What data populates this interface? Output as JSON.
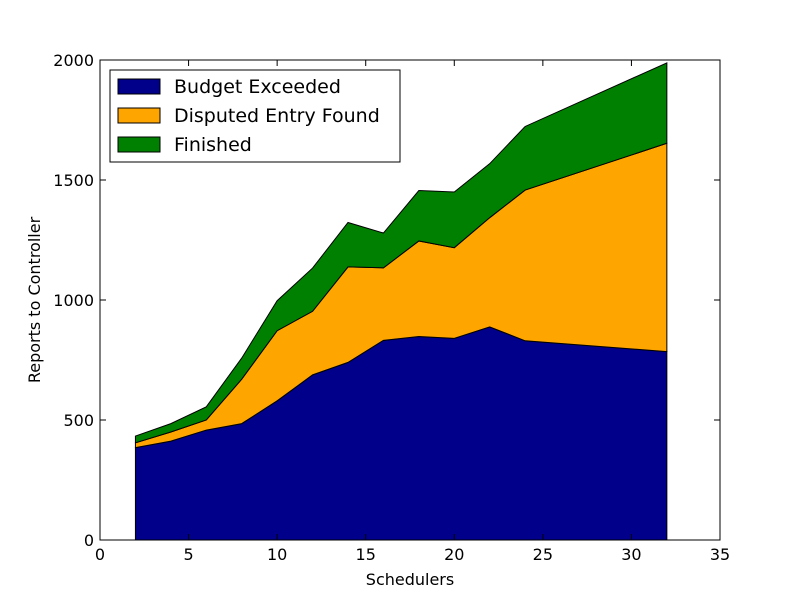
{
  "chart_data": {
    "type": "area",
    "stacked": true,
    "title": "",
    "xlabel": "Schedulers",
    "ylabel": "Reports to Controller",
    "xlim": [
      0,
      35
    ],
    "ylim": [
      0,
      2000
    ],
    "xticks": [
      0,
      5,
      10,
      15,
      20,
      25,
      30,
      35
    ],
    "yticks": [
      0,
      500,
      1000,
      1500,
      2000
    ],
    "grid": false,
    "legend_position": "top-left",
    "x": [
      2,
      4,
      6,
      8,
      10,
      12,
      14,
      16,
      18,
      20,
      22,
      24,
      32
    ],
    "series": [
      {
        "name": "Budget Exceeded",
        "color": "#00008b",
        "values": [
          385,
          412,
          458,
          485,
          580,
          688,
          740,
          832,
          848,
          840,
          888,
          830,
          785
        ]
      },
      {
        "name": "Disputed Entry Found",
        "color": "#ffa500",
        "values": [
          20,
          38,
          42,
          185,
          292,
          265,
          398,
          302,
          398,
          378,
          455,
          628,
          868
        ]
      },
      {
        "name": "Finished",
        "color": "#008000",
        "values": [
          28,
          35,
          55,
          88,
          125,
          180,
          185,
          145,
          210,
          232,
          225,
          265,
          335
        ]
      }
    ]
  }
}
